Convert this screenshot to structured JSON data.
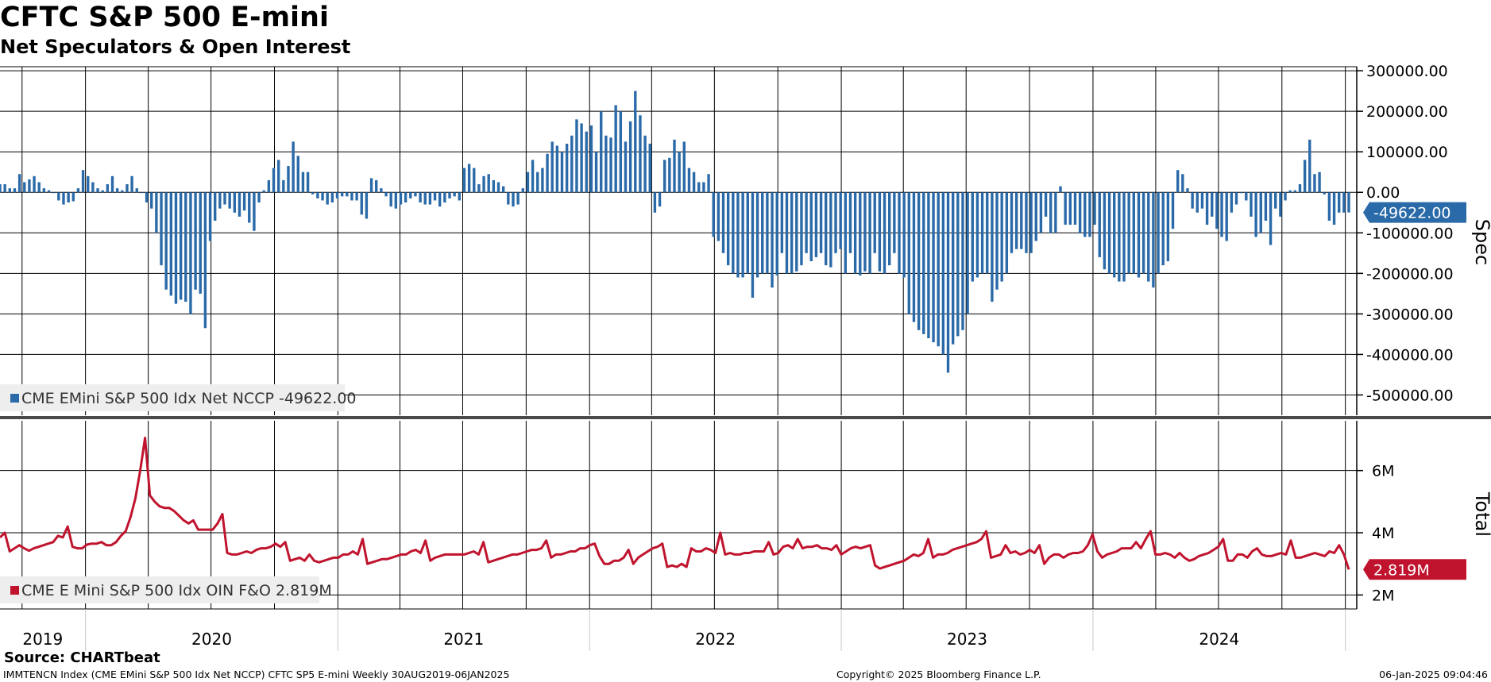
{
  "header": {
    "title": "CFTC S&P 500 E-mini",
    "subtitle": "Net Speculators & Open Interest"
  },
  "footer": {
    "source": "Source: CHARTbeat",
    "ticker_info": "IMMTENCN Index (CME EMini S&P 500 Idx Net NCCP) CFTC SP5 E-mini  Weekly 30AUG2019-06JAN2025",
    "copyright": "Copyright© 2025 Bloomberg Finance L.P.",
    "timestamp": "06-Jan-2025 09:04:46"
  },
  "colors": {
    "spec_bar": "#2a6aa8",
    "spec_badge": "#2a6aa8",
    "total_line": "#c0142e",
    "total_badge": "#c0142e",
    "grid": "#000000",
    "separator": "#4a4a4a",
    "legend_bg": "#eeeeee"
  },
  "chart_data": [
    {
      "type": "bar",
      "pane": "top",
      "axis_title": "Spec",
      "legend": "CME EMini S&P 500 Idx Net NCCP -49622.00",
      "last_value_label": "-49622.00",
      "x_start": "2019-08-30",
      "x_end": "2025-01-06",
      "x_frequency": "weekly",
      "y_ticks": [
        "300000.00",
        "200000.00",
        "100000.00",
        "0.00",
        "-100000.00",
        "-200000.00",
        "-300000.00",
        "-400000.00",
        "-500000.00"
      ],
      "ylim": [
        -550000,
        310000
      ],
      "grid": true,
      "values": [
        20000,
        20000,
        10000,
        10000,
        45000,
        25000,
        32000,
        40000,
        25000,
        10000,
        5000,
        -2000,
        -20000,
        -30000,
        -25000,
        -22000,
        10000,
        55000,
        40000,
        25000,
        10000,
        5000,
        20000,
        40000,
        10000,
        5000,
        20000,
        40000,
        10000,
        0,
        -25000,
        -40000,
        -100000,
        -180000,
        -240000,
        -255000,
        -275000,
        -265000,
        -270000,
        -300000,
        -240000,
        -250000,
        -335000,
        -120000,
        -70000,
        -40000,
        -30000,
        -40000,
        -50000,
        -60000,
        -45000,
        -75000,
        -95000,
        -25000,
        5000,
        30000,
        60000,
        80000,
        30000,
        65000,
        125000,
        90000,
        50000,
        50000,
        -5000,
        -15000,
        -20000,
        -30000,
        -25000,
        -15000,
        -10000,
        -10000,
        -20000,
        -20000,
        -55000,
        -65000,
        35000,
        30000,
        10000,
        -10000,
        -35000,
        -40000,
        -30000,
        -25000,
        -15000,
        -10000,
        -25000,
        -30000,
        -30000,
        -20000,
        -35000,
        -25000,
        -15000,
        -10000,
        -20000,
        60000,
        70000,
        60000,
        20000,
        40000,
        45000,
        30000,
        25000,
        15000,
        -30000,
        -35000,
        -30000,
        10000,
        50000,
        80000,
        50000,
        60000,
        95000,
        125000,
        115000,
        100000,
        120000,
        140000,
        180000,
        170000,
        150000,
        165000,
        100000,
        200000,
        140000,
        135000,
        215000,
        200000,
        125000,
        175000,
        250000,
        190000,
        140000,
        120000,
        -50000,
        -35000,
        80000,
        85000,
        130000,
        100000,
        125000,
        60000,
        50000,
        25000,
        25000,
        45000,
        -110000,
        -120000,
        -150000,
        -180000,
        -200000,
        -210000,
        -210000,
        -200000,
        -260000,
        -210000,
        -200000,
        -200000,
        -235000,
        -205000,
        -150000,
        -200000,
        -200000,
        -195000,
        -180000,
        -150000,
        -170000,
        -160000,
        -150000,
        -180000,
        -185000,
        -150000,
        -140000,
        -200000,
        -150000,
        -200000,
        -205000,
        -195000,
        -200000,
        -150000,
        -195000,
        -200000,
        -180000,
        -150000,
        -200000,
        -210000,
        -300000,
        -320000,
        -340000,
        -350000,
        -360000,
        -370000,
        -380000,
        -400000,
        -445000,
        -375000,
        -355000,
        -340000,
        -300000,
        -220000,
        -210000,
        -200000,
        -200000,
        -270000,
        -240000,
        -220000,
        -200000,
        -150000,
        -140000,
        -140000,
        -150000,
        -150000,
        -120000,
        -100000,
        -60000,
        -100000,
        -100000,
        15000,
        -80000,
        -80000,
        -80000,
        -100000,
        -110000,
        -110000,
        -80000,
        -160000,
        -190000,
        -200000,
        -210000,
        -220000,
        -220000,
        -200000,
        -200000,
        -210000,
        -200000,
        -220000,
        -235000,
        -200000,
        -180000,
        -170000,
        -90000,
        55000,
        45000,
        10000,
        -40000,
        -50000,
        -40000,
        -80000,
        -60000,
        -90000,
        -110000,
        -120000,
        -50000,
        -30000,
        0,
        -20000,
        -60000,
        -110000,
        -100000,
        -70000,
        -130000,
        -40000,
        -60000,
        -20000,
        5000,
        5000,
        20000,
        80000,
        130000,
        45000,
        50000,
        -5000,
        -70000,
        -80000,
        -50000,
        -50000,
        -49622
      ]
    },
    {
      "type": "line",
      "pane": "bottom",
      "axis_title": "Total",
      "legend": "CME E Mini S&P 500 Idx OIN F&O 2.819M",
      "last_value_label": "2.819M",
      "x_start": "2019-08-30",
      "x_end": "2025-01-06",
      "x_frequency": "weekly",
      "y_ticks": [
        "6M",
        "4M",
        "2M"
      ],
      "ylim": [
        1.55,
        7.6
      ],
      "unit": "M",
      "x_labels": [
        "2019",
        "2020",
        "2021",
        "2022",
        "2023",
        "2024"
      ],
      "grid": true,
      "values": [
        3.85,
        4.0,
        3.4,
        3.5,
        3.6,
        3.5,
        3.42,
        3.5,
        3.55,
        3.6,
        3.65,
        3.7,
        3.9,
        3.85,
        4.2,
        3.55,
        3.5,
        3.5,
        3.62,
        3.65,
        3.65,
        3.7,
        3.6,
        3.6,
        3.7,
        3.9,
        4.05,
        4.5,
        5.1,
        6.0,
        7.05,
        5.2,
        5.0,
        4.85,
        4.8,
        4.8,
        4.7,
        4.55,
        4.4,
        4.3,
        4.4,
        4.1,
        4.1,
        4.1,
        4.1,
        4.3,
        4.6,
        3.35,
        3.3,
        3.3,
        3.35,
        3.4,
        3.35,
        3.45,
        3.5,
        3.5,
        3.55,
        3.65,
        3.55,
        3.7,
        3.1,
        3.15,
        3.2,
        3.1,
        3.3,
        3.1,
        3.05,
        3.1,
        3.15,
        3.2,
        3.2,
        3.3,
        3.3,
        3.4,
        3.3,
        3.8,
        3.0,
        3.05,
        3.1,
        3.15,
        3.15,
        3.2,
        3.25,
        3.3,
        3.3,
        3.4,
        3.45,
        3.35,
        3.75,
        3.1,
        3.2,
        3.25,
        3.3,
        3.3,
        3.3,
        3.3,
        3.3,
        3.35,
        3.4,
        3.3,
        3.7,
        3.05,
        3.1,
        3.15,
        3.2,
        3.25,
        3.3,
        3.3,
        3.35,
        3.4,
        3.45,
        3.45,
        3.5,
        3.75,
        3.2,
        3.3,
        3.3,
        3.35,
        3.4,
        3.4,
        3.5,
        3.5,
        3.6,
        3.65,
        3.25,
        3.0,
        3.0,
        3.1,
        3.1,
        3.2,
        3.45,
        3.0,
        3.2,
        3.3,
        3.4,
        3.5,
        3.55,
        3.65,
        2.9,
        2.95,
        2.9,
        3.0,
        2.9,
        3.5,
        3.4,
        3.4,
        3.5,
        3.45,
        3.35,
        4.0,
        3.3,
        3.35,
        3.3,
        3.3,
        3.35,
        3.35,
        3.4,
        3.4,
        3.4,
        3.7,
        3.3,
        3.35,
        3.55,
        3.6,
        3.5,
        3.8,
        3.5,
        3.55,
        3.55,
        3.6,
        3.5,
        3.5,
        3.45,
        3.6,
        3.3,
        3.4,
        3.5,
        3.55,
        3.5,
        3.55,
        3.6,
        2.95,
        2.85,
        2.9,
        2.95,
        3.0,
        3.05,
        3.1,
        3.2,
        3.3,
        3.25,
        3.35,
        3.8,
        3.2,
        3.3,
        3.3,
        3.35,
        3.45,
        3.5,
        3.55,
        3.6,
        3.65,
        3.7,
        3.8,
        4.05,
        3.2,
        3.25,
        3.3,
        3.6,
        3.35,
        3.4,
        3.3,
        3.35,
        3.45,
        3.35,
        3.6,
        3.0,
        3.2,
        3.3,
        3.3,
        3.2,
        3.3,
        3.35,
        3.35,
        3.4,
        3.6,
        3.95,
        3.4,
        3.2,
        3.3,
        3.35,
        3.4,
        3.5,
        3.5,
        3.5,
        3.7,
        3.5,
        3.8,
        4.05,
        3.3,
        3.3,
        3.35,
        3.3,
        3.2,
        3.35,
        3.2,
        3.1,
        3.15,
        3.25,
        3.3,
        3.35,
        3.45,
        3.55,
        3.8,
        3.1,
        3.1,
        3.3,
        3.3,
        3.2,
        3.4,
        3.5,
        3.3,
        3.25,
        3.25,
        3.3,
        3.35,
        3.3,
        3.75,
        3.2,
        3.2,
        3.25,
        3.3,
        3.35,
        3.3,
        3.25,
        3.4,
        3.35,
        3.6,
        3.3,
        2.819
      ]
    }
  ]
}
